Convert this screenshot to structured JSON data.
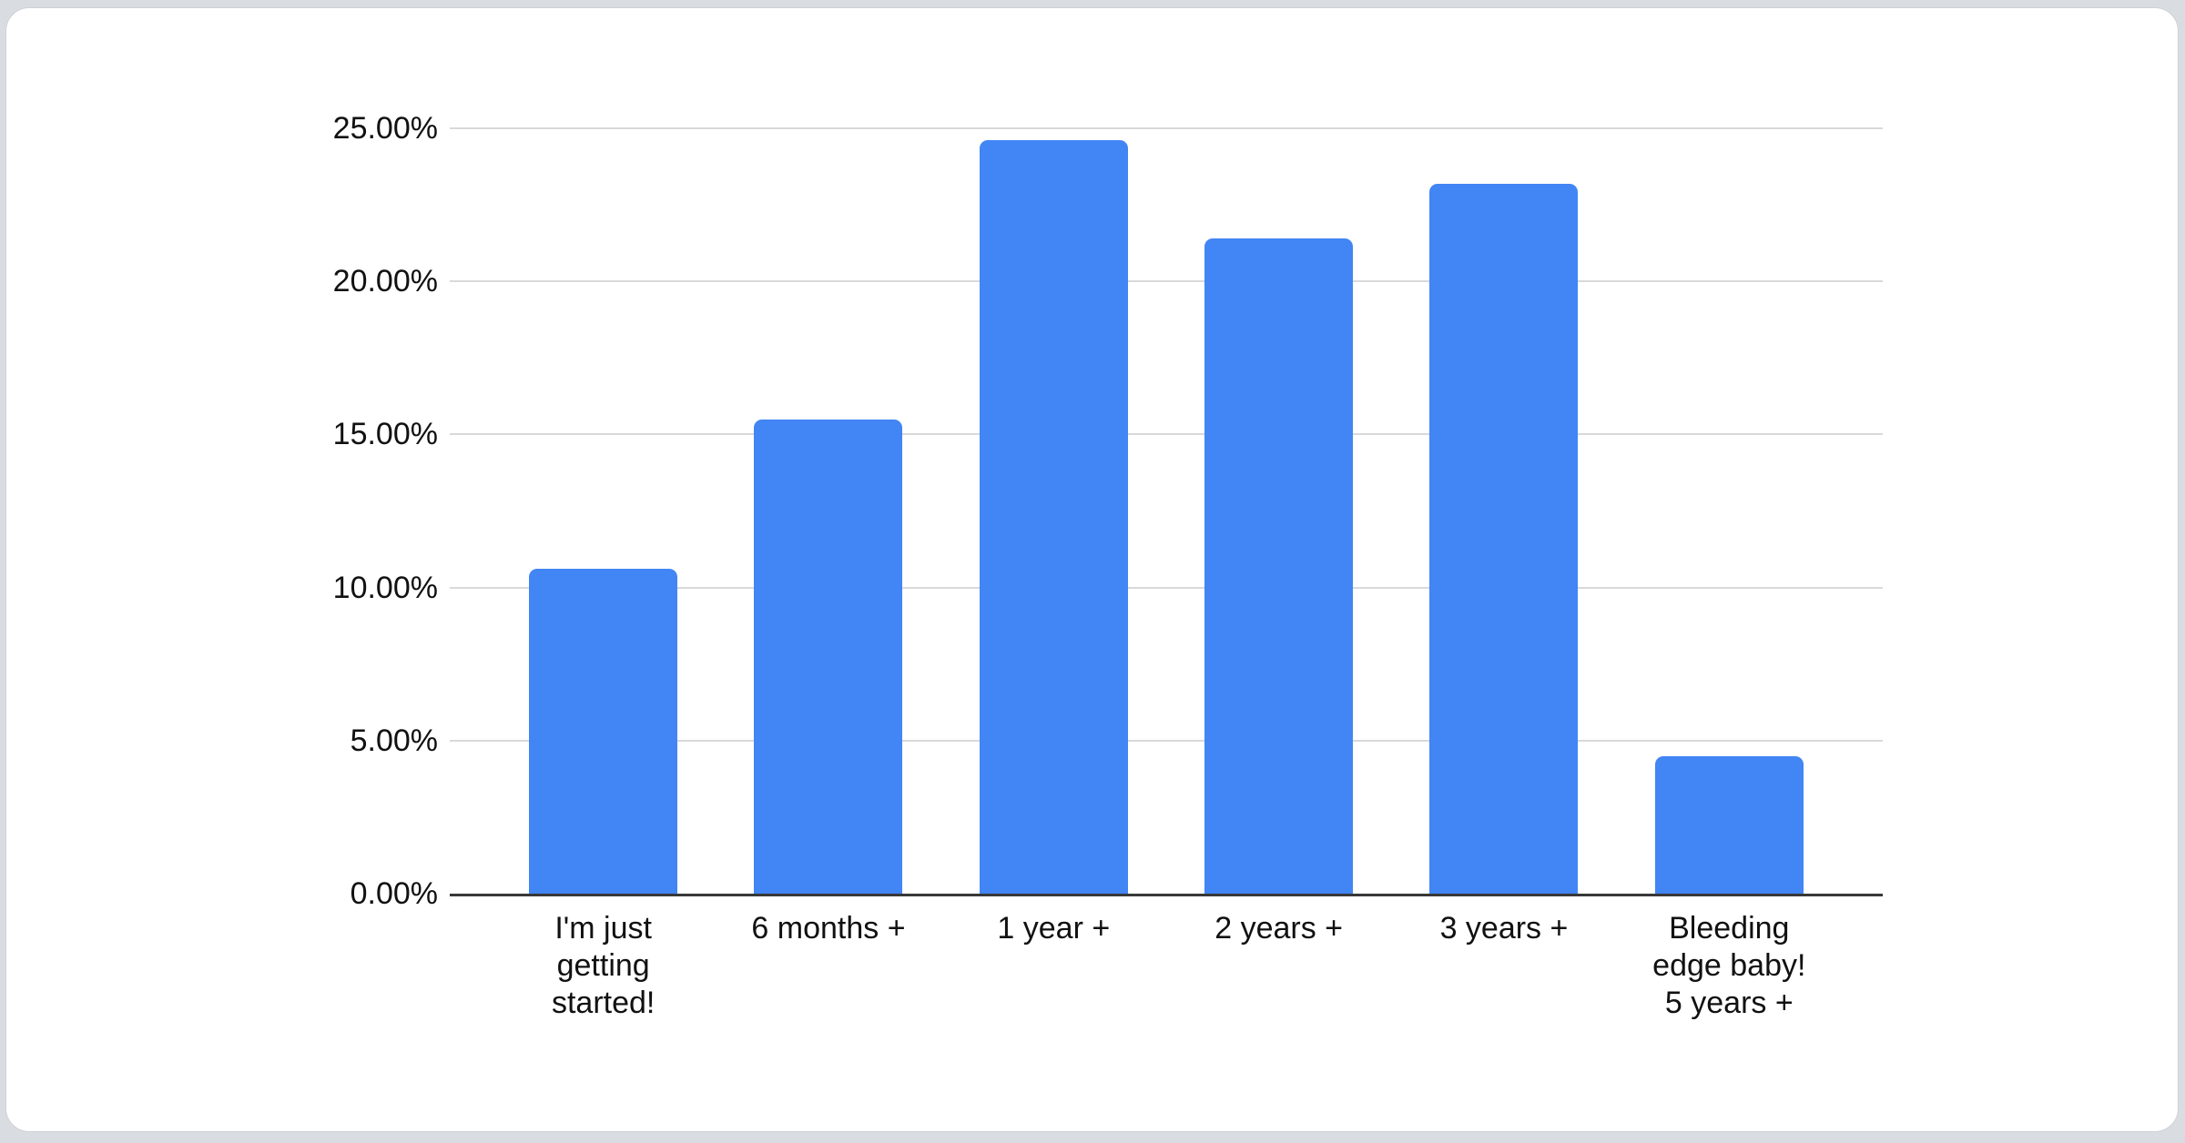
{
  "chart_data": {
    "type": "bar",
    "title": "",
    "xlabel": "",
    "ylabel": "",
    "categories": [
      "I'm just getting started!",
      "6 months +",
      "1 year +",
      "2 years +",
      "3 years +",
      "Bleeding edge baby! 5 years +"
    ],
    "tick_labels": [
      "I'm just\ngetting\nstarted!",
      "6 months +",
      "1 year +",
      "2 years +",
      "3 years +",
      "Bleeding\nedge baby!\n5 years +"
    ],
    "values": [
      10.6,
      15.5,
      24.6,
      21.4,
      23.2,
      4.5
    ],
    "y_ticks": [
      {
        "label": "0.00%",
        "value": 0
      },
      {
        "label": "5.00%",
        "value": 5
      },
      {
        "label": "10.00%",
        "value": 10
      },
      {
        "label": "15.00%",
        "value": 15
      },
      {
        "label": "20.00%",
        "value": 20
      },
      {
        "label": "25.00%",
        "value": 25
      }
    ],
    "ylim": [
      0,
      25
    ],
    "grid": true,
    "legend_position": "none",
    "bar_color": "#4285f4",
    "gridline_color": "#d9d9d9",
    "baseline_color": "#383838",
    "label_color": "#111111",
    "card_background": "#ffffff",
    "page_background": "#d9dce0"
  }
}
